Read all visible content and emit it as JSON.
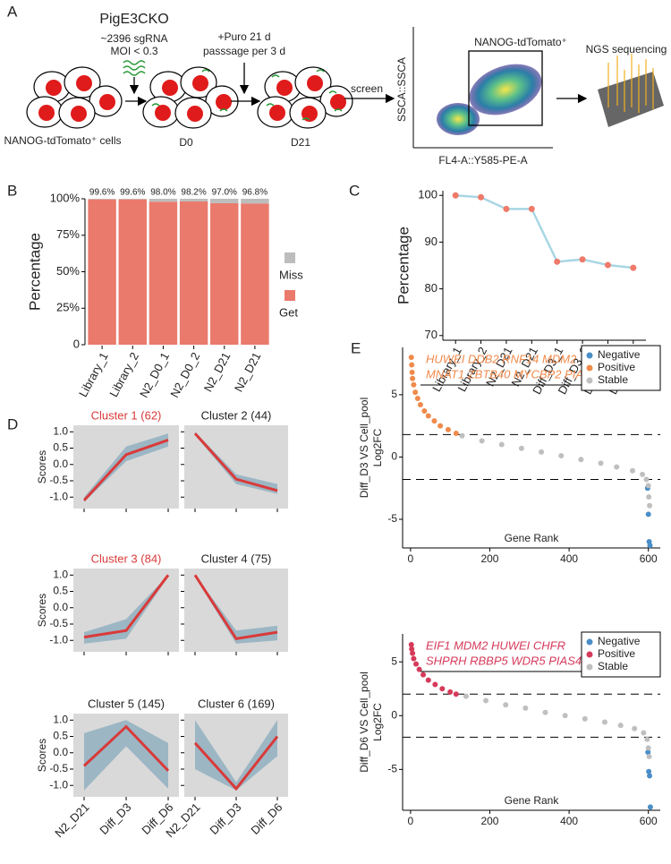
{
  "panels": [
    "A",
    "B",
    "C",
    "D",
    "E"
  ],
  "panel_a": {
    "title": "PigE3CKO",
    "library": "~2396 sgRNA",
    "moi": "MOI < 0.3",
    "puro": "+Puro 21 d",
    "passage": "passsage per 3 d",
    "cells": "NANOG-tdTomato⁺ cells",
    "day0": "D0",
    "day21": "D21",
    "screen": "screen",
    "flow_ylabel": "SSCA::SSCA",
    "flow_xlabel": "FL4-A::Y585-PE-A",
    "gate": "NANOG-tdTomato⁺",
    "ngs": "NGS sequencing"
  },
  "chart_data": [
    {
      "type": "stacked_bar",
      "ylabel": "Percentage",
      "categories": [
        "Library_1",
        "Library_2",
        "N2_D0_1",
        "N2_D0_2",
        "N2_D21",
        "N2_D21"
      ],
      "series": [
        {
          "name": "Get",
          "color": "#ea7a6c",
          "values": [
            99.6,
            99.6,
            98.0,
            98.2,
            97.0,
            96.8
          ],
          "value_labels": [
            "99.6%",
            "99.6%",
            "98.0%",
            "98.2%",
            "97.0%",
            "96.8%"
          ]
        },
        {
          "name": "Miss",
          "color": "#bdbdbd",
          "values": [
            0.4,
            0.4,
            2.0,
            1.8,
            3.0,
            3.2
          ]
        }
      ],
      "ylim": [
        0,
        100
      ],
      "yticks": [
        0,
        {
          "value": 25,
          "label": "25%"
        },
        {
          "value": 50,
          "label": "50%"
        },
        {
          "value": 75,
          "label": "75%"
        },
        {
          "value": 100,
          "label": "100%"
        }
      ],
      "legend": "right"
    },
    {
      "type": "line",
      "ylabel": "Percentage",
      "categories": [
        "Library_1",
        "Library_2",
        "N2_D21",
        "N2_D21",
        "Diff_D3_1",
        "Diff_D3_2",
        "Diff_D6_1",
        "Diff_D6_2"
      ],
      "values": [
        100,
        99.6,
        97.1,
        97.1,
        85.8,
        86.3,
        85.1,
        84.5
      ],
      "color": "#a9d6e5",
      "marker_color": "#ef7a6a",
      "ylim": [
        69,
        101
      ],
      "yticks": [
        70,
        80,
        90,
        100
      ]
    },
    {
      "type": "cluster_lines",
      "ylabel": "Scores",
      "categories": [
        "N2_D21",
        "Diff_D3",
        "Diff_D6"
      ],
      "ylim": [
        -1.35,
        1.2
      ],
      "yticks": [
        {
          "value": -1,
          "label": "-1.0"
        },
        -0.5,
        {
          "value": 0,
          "label": "0.0"
        },
        0.5,
        {
          "value": 1,
          "label": "1.0"
        }
      ],
      "line_color": "#d93a3a",
      "band_color": "#9cb6c4",
      "background": "#d9d9d9",
      "clusters": [
        {
          "title": "Cluster 1 (62)",
          "title_color": "#d93a3a",
          "values": [
            -1.1,
            0.3,
            0.75
          ],
          "low": [
            -1.15,
            0.1,
            0.55
          ],
          "high": [
            -1.0,
            0.55,
            0.95
          ]
        },
        {
          "title": "Cluster 2 (44)",
          "title_color": "#222222",
          "values": [
            0.95,
            -0.45,
            -0.8
          ],
          "low": [
            0.9,
            -0.6,
            -0.9
          ],
          "high": [
            1.0,
            -0.3,
            -0.6
          ]
        },
        {
          "title": "Cluster 3 (84)",
          "title_color": "#d93a3a",
          "values": [
            -0.9,
            -0.7,
            1.0
          ],
          "low": [
            -1.1,
            -0.95,
            0.95
          ],
          "high": [
            -0.75,
            -0.35,
            1.0
          ]
        },
        {
          "title": "Cluster 4 (75)",
          "title_color": "#222222",
          "values": [
            1.0,
            -0.95,
            -0.75
          ],
          "low": [
            0.95,
            -1.1,
            -1.0
          ],
          "high": [
            1.0,
            -0.7,
            -0.55
          ]
        },
        {
          "title": "Cluster 5 (145)",
          "title_color": "#222222",
          "values": [
            -0.4,
            0.8,
            -0.55
          ],
          "low": [
            -1.15,
            0.2,
            -1.1
          ],
          "high": [
            0.6,
            1.0,
            0.3
          ]
        },
        {
          "title": "Cluster 6 (169)",
          "title_color": "#222222",
          "values": [
            0.3,
            -1.1,
            0.5
          ],
          "low": [
            -0.5,
            -1.15,
            -0.1
          ],
          "high": [
            1.0,
            -0.9,
            1.0
          ]
        }
      ]
    },
    {
      "type": "scatter",
      "ylabel": [
        "Diff_D3 VS Cell_pool",
        "Log2FC"
      ],
      "xlabel": "Gene Rank",
      "annotation": [
        "HUWEI DDB2 RNF14 MDM2",
        "MNAT1 ZBTB40 MYCBP2 PIAS4"
      ],
      "annotation_color": "#f08a4b",
      "hlines": [
        1.8,
        -1.8
      ],
      "xlim": [
        -20,
        630
      ],
      "ylim": [
        -7.3,
        8.8
      ],
      "xticks": [
        0,
        200,
        400,
        600
      ],
      "yticks": [
        -5,
        0,
        5
      ],
      "legend": "upper right",
      "series": [
        {
          "name": "Negative",
          "color": "#4a8ec8",
          "x": [
            598,
            600,
            602,
            604
          ],
          "values": [
            -2.5,
            -4.6,
            -6.8,
            -7.1
          ]
        },
        {
          "name": "Positive",
          "color": "#f08a4b",
          "x": [
            2,
            3,
            4,
            5,
            8,
            12,
            18,
            25,
            35,
            45,
            60,
            75,
            95,
            115
          ],
          "values": [
            8.0,
            7.4,
            6.8,
            6.3,
            5.8,
            5.2,
            4.7,
            4.2,
            3.7,
            3.3,
            2.9,
            2.5,
            2.2,
            1.9
          ]
        },
        {
          "name": "Stable",
          "color": "#bfbfbf",
          "x": [
            130,
            180,
            230,
            280,
            330,
            380,
            430,
            480,
            520,
            560,
            585,
            595,
            600,
            601,
            603
          ],
          "values": [
            1.7,
            1.3,
            1.0,
            0.7,
            0.4,
            0.1,
            -0.2,
            -0.5,
            -0.8,
            -1.1,
            -1.4,
            -1.8,
            -2.3,
            -3.2,
            -3.9
          ]
        }
      ]
    },
    {
      "type": "scatter",
      "ylabel": [
        "Diff_D6 VS Cell_pool",
        "Log2FC"
      ],
      "xlabel": "Gene Rank",
      "annotation": [
        "EIF1  MDM2 HUWEI CHFR",
        "SHPRH RBBP5 WDR5 PIAS4"
      ],
      "annotation_color": "#d63a5a",
      "hlines": [
        2,
        -2
      ],
      "xlim": [
        -20,
        630
      ],
      "ylim": [
        -8.8,
        7.6
      ],
      "xticks": [
        0,
        200,
        400,
        600
      ],
      "yticks": [
        -5,
        0,
        5
      ],
      "legend": "upper right",
      "series": [
        {
          "name": "Negative",
          "color": "#4a8ec8",
          "x": [
            599,
            601,
            603,
            605
          ],
          "values": [
            -3.4,
            -5.2,
            -5.6,
            -8.5
          ]
        },
        {
          "name": "Positive",
          "color": "#d63a5a",
          "x": [
            2,
            3,
            5,
            8,
            14,
            22,
            32,
            45,
            62,
            80,
            100,
            115
          ],
          "values": [
            6.6,
            6.2,
            5.8,
            5.3,
            4.8,
            4.3,
            3.8,
            3.3,
            2.9,
            2.5,
            2.2,
            2.0
          ]
        },
        {
          "name": "Stable",
          "color": "#bfbfbf",
          "x": [
            140,
            190,
            240,
            290,
            340,
            390,
            440,
            490,
            530,
            565,
            588,
            597,
            600,
            602
          ],
          "values": [
            1.8,
            1.4,
            1.0,
            0.7,
            0.3,
            0,
            -0.3,
            -0.6,
            -0.9,
            -1.2,
            -1.6,
            -2.2,
            -3.0,
            -3.8
          ]
        }
      ]
    }
  ]
}
